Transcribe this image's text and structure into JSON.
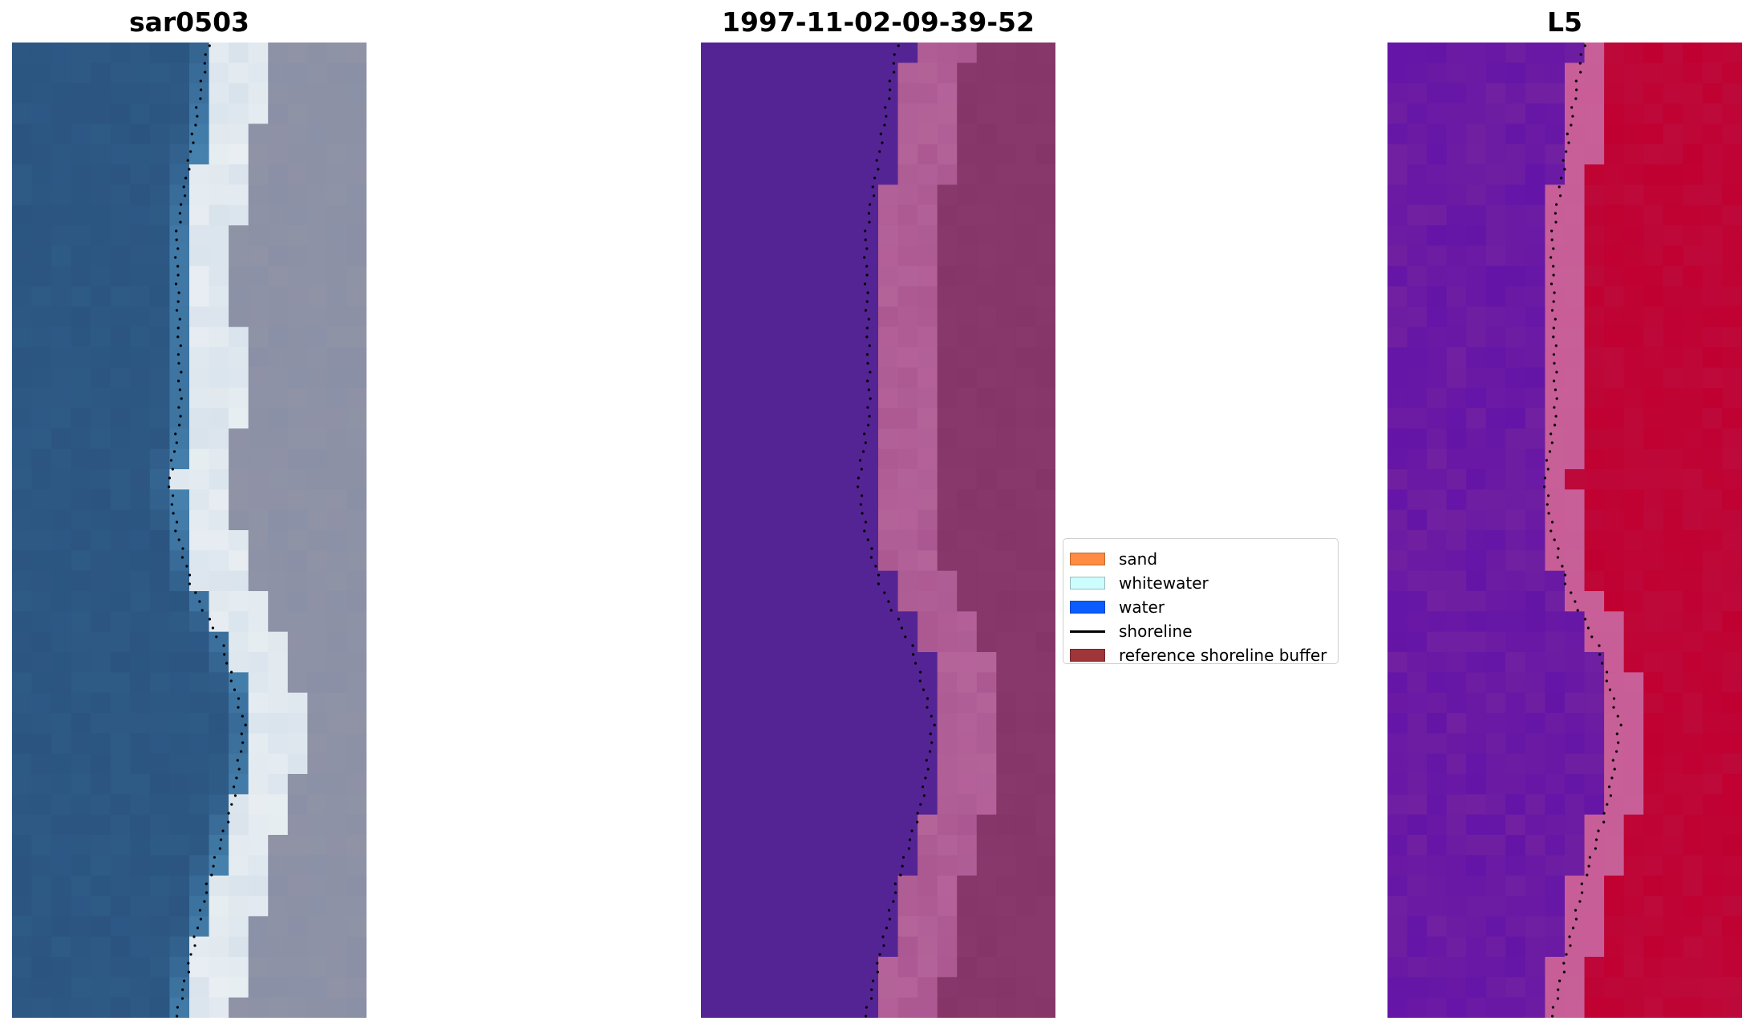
{
  "panels": [
    {
      "id": "rgb",
      "title": "sar0503",
      "image": "RGB satellite image (water, whitewater, sand)"
    },
    {
      "id": "classified",
      "title": "1997-11-02-09-39-52",
      "image": "classified image overlay"
    },
    {
      "id": "index",
      "title": "L5",
      "image": "water index image"
    }
  ],
  "legend": {
    "items": [
      {
        "label": "sand",
        "kind": "patch",
        "color": "#ff8c42"
      },
      {
        "label": "whitewater",
        "kind": "patch",
        "color": "#ccfdff"
      },
      {
        "label": "water",
        "kind": "patch",
        "color": "#0a5cff"
      },
      {
        "label": "shoreline",
        "kind": "line",
        "color": "#000000"
      },
      {
        "label": "reference shoreline buffer",
        "kind": "patch",
        "color": "#9e3537"
      }
    ]
  },
  "colors": {
    "rgb_water": "#2e5a86",
    "rgb_whitewater": "#e8eef2",
    "rgb_land": "#8a90a6",
    "class_water": "#552494",
    "class_beach": "#b5649a",
    "class_land": "#853567",
    "index_water": "#7020a0",
    "index_land": "#c00030",
    "index_transition": "#c86098",
    "shoreline": "#000000"
  }
}
